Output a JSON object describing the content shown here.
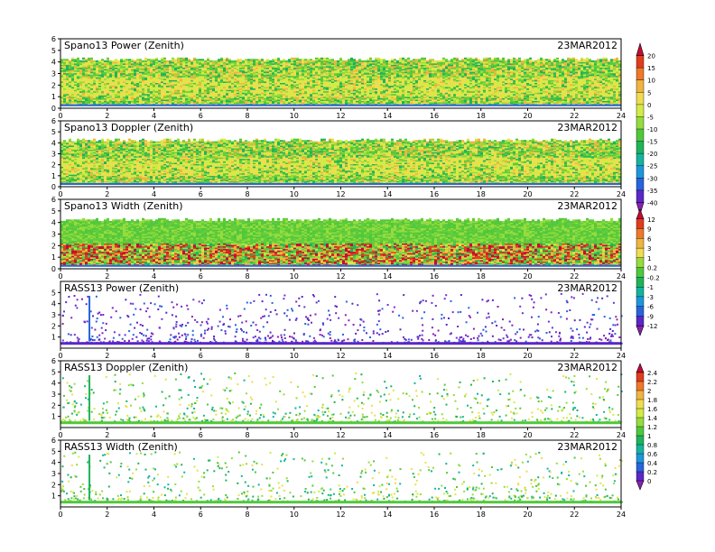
{
  "date_label": "23MAR2012",
  "chart_data": [
    {
      "type": "heatmap",
      "title": "Spano13 Power (Zenith)",
      "x_ticks": [
        0,
        2,
        4,
        6,
        8,
        10,
        12,
        14,
        16,
        18,
        20,
        22,
        24
      ],
      "y_ticks": [
        0,
        1,
        2,
        3,
        4,
        5,
        6
      ],
      "xlim": [
        0,
        24
      ],
      "ylim": [
        0,
        6
      ],
      "palette": "power",
      "density": "dense",
      "top_km": 4.2
    },
    {
      "type": "heatmap",
      "title": "Spano13 Doppler (Zenith)",
      "x_ticks": [
        0,
        2,
        4,
        6,
        8,
        10,
        12,
        14,
        16,
        18,
        20,
        22,
        24
      ],
      "y_ticks": [
        0,
        1,
        2,
        3,
        4,
        5,
        6
      ],
      "xlim": [
        0,
        24
      ],
      "ylim": [
        0,
        6
      ],
      "palette": "power",
      "density": "dense",
      "top_km": 4.2
    },
    {
      "type": "heatmap",
      "title": "Spano13 Width (Zenith)",
      "x_ticks": [
        0,
        2,
        4,
        6,
        8,
        10,
        12,
        14,
        16,
        18,
        20,
        22,
        24
      ],
      "y_ticks": [
        0,
        1,
        2,
        3,
        4,
        5,
        6
      ],
      "xlim": [
        0,
        24
      ],
      "ylim": [
        0,
        6
      ],
      "palette": "width",
      "density": "dense",
      "top_km": 4.2
    },
    {
      "type": "heatmap",
      "title": "RASS13 Power (Zenith)",
      "x_ticks": [
        0,
        2,
        4,
        6,
        8,
        10,
        12,
        14,
        16,
        18,
        20,
        22,
        24
      ],
      "y_ticks": [
        1,
        2,
        3,
        4,
        5
      ],
      "xlim": [
        0,
        24
      ],
      "ylim": [
        0,
        6
      ],
      "palette": "rass_power",
      "density": "sparse",
      "top_km": 1.2
    },
    {
      "type": "heatmap",
      "title": "RASS13 Doppler (Zenith)",
      "x_ticks": [
        0,
        2,
        4,
        6,
        8,
        10,
        12,
        14,
        16,
        18,
        20,
        22,
        24
      ],
      "y_ticks": [
        1,
        2,
        3,
        4,
        5,
        6
      ],
      "xlim": [
        0,
        24
      ],
      "ylim": [
        0,
        6
      ],
      "palette": "rass_doppler",
      "density": "sparse",
      "top_km": 1.2
    },
    {
      "type": "heatmap",
      "title": "RASS13 Width (Zenith)",
      "x_ticks": [
        0,
        2,
        4,
        6,
        8,
        10,
        12,
        14,
        16,
        18,
        20,
        22,
        24
      ],
      "y_ticks": [
        1,
        2,
        3,
        4,
        5,
        6
      ],
      "xlim": [
        0,
        24
      ],
      "ylim": [
        0,
        6
      ],
      "palette": "rass_doppler",
      "density": "sparse",
      "top_km": 1.2
    }
  ],
  "colorbars": [
    {
      "labels": [
        "20",
        "15",
        "10",
        "5",
        "0",
        "-5",
        "-10",
        "-15",
        "-20",
        "-25",
        "-30",
        "-35",
        "-40"
      ],
      "colors": [
        "#c80a32",
        "#e03c1e",
        "#f07828",
        "#f0b440",
        "#f0dc50",
        "#d2eb46",
        "#96dc3c",
        "#50c83c",
        "#1eb45a",
        "#14b4a0",
        "#1e96dc",
        "#2864dc",
        "#5a28c8",
        "#8c1eb4"
      ]
    },
    {
      "labels": [
        "12",
        "9",
        "6",
        "3",
        "1",
        "0.2",
        "-0.2",
        "-1",
        "-3",
        "-6",
        "-9",
        "-12"
      ],
      "colors": [
        "#c80a32",
        "#e03c1e",
        "#f07828",
        "#f0b440",
        "#f0dc50",
        "#96dc3c",
        "#50c83c",
        "#1eb45a",
        "#14b4a0",
        "#1e96dc",
        "#2864dc",
        "#5a28c8",
        "#8c1eb4"
      ]
    },
    {
      "labels": [
        "2.4",
        "2.2",
        "2",
        "1.8",
        "1.6",
        "1.4",
        "1.2",
        "1",
        "0.8",
        "0.6",
        "0.4",
        "0.2",
        "0"
      ],
      "colors": [
        "#c80a32",
        "#e03c1e",
        "#f07828",
        "#f0b440",
        "#f0dc50",
        "#d2eb46",
        "#96dc3c",
        "#50c83c",
        "#1eb45a",
        "#14b4a0",
        "#1e96dc",
        "#2864dc",
        "#5a28c8",
        "#8c1eb4"
      ]
    }
  ]
}
